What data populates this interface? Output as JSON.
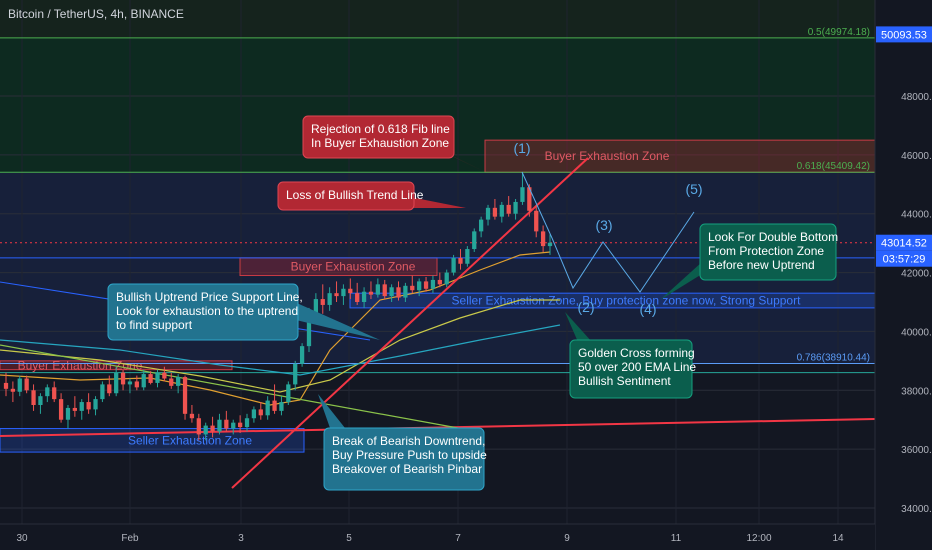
{
  "header": {
    "title": "Bitcoin / TetherUS, 4h, BINANCE"
  },
  "colors": {
    "background": "#131722",
    "up_candle": "#26a69a",
    "down_candle": "#ef5350",
    "trend_line": "#f23645",
    "fib_zone_top": "#0d2a20",
    "fib_zone_mid": "#17203a",
    "blue_zone": "#1e3a6b",
    "red_zone": "#4a1a1f",
    "price_badge": "#2962ff",
    "callout_red": "#b22833",
    "callout_blue": "#22738f",
    "callout_green": "#0b5e4d"
  },
  "chart_data": {
    "type": "candlestick",
    "title": "Bitcoin / TetherUS, 4h, BINANCE",
    "y_axis": {
      "ticks": [
        34000,
        36000,
        38000,
        40000,
        42000,
        44000,
        46000,
        48000
      ],
      "tick_labels": [
        "34000.00",
        "36000.00",
        "38000.00",
        "40000.00",
        "42000.00",
        "44000.00",
        "46000.00",
        "48000.00"
      ],
      "range": [
        33500,
        51200
      ]
    },
    "x_axis": {
      "tick_labels": [
        "30",
        "Feb",
        "3",
        "5",
        "7",
        "9",
        "11",
        "12:00",
        "14"
      ]
    },
    "grid": true,
    "price_labels": [
      {
        "value": "50093.53",
        "style": "blue"
      },
      {
        "value": "43014.52",
        "style": "blue"
      },
      {
        "value": "03:57:29",
        "style": "blue"
      }
    ],
    "fib_levels": [
      {
        "label": "0.5(49974.18)",
        "value": 49974.18
      },
      {
        "label": "0.618(45409.42)",
        "value": 45409.42
      },
      {
        "label": "0.786(38910.44)",
        "value": 38910.44
      }
    ],
    "candles": [
      {
        "o": 38250,
        "h": 38600,
        "l": 37800,
        "c": 38050
      },
      {
        "o": 38050,
        "h": 38300,
        "l": 37600,
        "c": 37950
      },
      {
        "o": 37950,
        "h": 38500,
        "l": 37800,
        "c": 38400
      },
      {
        "o": 38400,
        "h": 38500,
        "l": 37900,
        "c": 38000
      },
      {
        "o": 38000,
        "h": 38200,
        "l": 37300,
        "c": 37500
      },
      {
        "o": 37500,
        "h": 37900,
        "l": 37200,
        "c": 37800
      },
      {
        "o": 37800,
        "h": 38200,
        "l": 37600,
        "c": 38100
      },
      {
        "o": 38100,
        "h": 38300,
        "l": 37600,
        "c": 37700
      },
      {
        "o": 37700,
        "h": 37900,
        "l": 36900,
        "c": 37000
      },
      {
        "o": 37000,
        "h": 37500,
        "l": 36700,
        "c": 37400
      },
      {
        "o": 37400,
        "h": 37800,
        "l": 37100,
        "c": 37300
      },
      {
        "o": 37300,
        "h": 37700,
        "l": 37000,
        "c": 37600
      },
      {
        "o": 37600,
        "h": 37900,
        "l": 37200,
        "c": 37350
      },
      {
        "o": 37350,
        "h": 37800,
        "l": 37150,
        "c": 37700
      },
      {
        "o": 37700,
        "h": 38300,
        "l": 37600,
        "c": 38200
      },
      {
        "o": 38200,
        "h": 38500,
        "l": 37800,
        "c": 37900
      },
      {
        "o": 37900,
        "h": 38800,
        "l": 37800,
        "c": 38600
      },
      {
        "o": 38600,
        "h": 38700,
        "l": 38000,
        "c": 38200
      },
      {
        "o": 38200,
        "h": 38400,
        "l": 37900,
        "c": 38300
      },
      {
        "o": 38300,
        "h": 38500,
        "l": 38000,
        "c": 38100
      },
      {
        "o": 38100,
        "h": 38700,
        "l": 38000,
        "c": 38550
      },
      {
        "o": 38550,
        "h": 38650,
        "l": 38200,
        "c": 38250
      },
      {
        "o": 38250,
        "h": 38700,
        "l": 38100,
        "c": 38600
      },
      {
        "o": 38600,
        "h": 38800,
        "l": 38300,
        "c": 38400
      },
      {
        "o": 38400,
        "h": 38600,
        "l": 38050,
        "c": 38150
      },
      {
        "o": 38150,
        "h": 38550,
        "l": 37900,
        "c": 38450
      },
      {
        "o": 38450,
        "h": 38500,
        "l": 37000,
        "c": 37200
      },
      {
        "o": 37200,
        "h": 37500,
        "l": 36900,
        "c": 37050
      },
      {
        "o": 37050,
        "h": 37200,
        "l": 36300,
        "c": 36500
      },
      {
        "o": 36500,
        "h": 36900,
        "l": 36300,
        "c": 36800
      },
      {
        "o": 36800,
        "h": 37100,
        "l": 36400,
        "c": 36600
      },
      {
        "o": 36600,
        "h": 37200,
        "l": 36500,
        "c": 37000
      },
      {
        "o": 37000,
        "h": 37300,
        "l": 36600,
        "c": 36700
      },
      {
        "o": 36700,
        "h": 37000,
        "l": 36500,
        "c": 36900
      },
      {
        "o": 36900,
        "h": 37150,
        "l": 36550,
        "c": 36750
      },
      {
        "o": 36750,
        "h": 37200,
        "l": 36600,
        "c": 37050
      },
      {
        "o": 37050,
        "h": 37450,
        "l": 36900,
        "c": 37350
      },
      {
        "o": 37350,
        "h": 37600,
        "l": 37000,
        "c": 37150
      },
      {
        "o": 37150,
        "h": 37800,
        "l": 37000,
        "c": 37650
      },
      {
        "o": 37650,
        "h": 38200,
        "l": 37200,
        "c": 37300
      },
      {
        "o": 37300,
        "h": 37800,
        "l": 37150,
        "c": 37600
      },
      {
        "o": 37600,
        "h": 38300,
        "l": 37500,
        "c": 38200
      },
      {
        "o": 38200,
        "h": 39000,
        "l": 38000,
        "c": 38900
      },
      {
        "o": 38900,
        "h": 39600,
        "l": 38800,
        "c": 39500
      },
      {
        "o": 39500,
        "h": 40800,
        "l": 39300,
        "c": 40600
      },
      {
        "o": 40600,
        "h": 41300,
        "l": 40300,
        "c": 41100
      },
      {
        "o": 41100,
        "h": 41600,
        "l": 40600,
        "c": 40900
      },
      {
        "o": 40900,
        "h": 41500,
        "l": 40700,
        "c": 41300
      },
      {
        "o": 41300,
        "h": 41700,
        "l": 41000,
        "c": 41200
      },
      {
        "o": 41200,
        "h": 41600,
        "l": 40900,
        "c": 41450
      },
      {
        "o": 41450,
        "h": 41800,
        "l": 41100,
        "c": 41300
      },
      {
        "o": 41300,
        "h": 41650,
        "l": 40900,
        "c": 41000
      },
      {
        "o": 41000,
        "h": 41500,
        "l": 40800,
        "c": 41350
      },
      {
        "o": 41350,
        "h": 41700,
        "l": 41100,
        "c": 41250
      },
      {
        "o": 41250,
        "h": 41800,
        "l": 41150,
        "c": 41600
      },
      {
        "o": 41600,
        "h": 41750,
        "l": 41100,
        "c": 41200
      },
      {
        "o": 41200,
        "h": 41600,
        "l": 41000,
        "c": 41500
      },
      {
        "o": 41500,
        "h": 41700,
        "l": 41050,
        "c": 41150
      },
      {
        "o": 41150,
        "h": 41650,
        "l": 41000,
        "c": 41550
      },
      {
        "o": 41550,
        "h": 41900,
        "l": 41300,
        "c": 41400
      },
      {
        "o": 41400,
        "h": 41800,
        "l": 41200,
        "c": 41700
      },
      {
        "o": 41700,
        "h": 41850,
        "l": 41350,
        "c": 41450
      },
      {
        "o": 41450,
        "h": 41900,
        "l": 41300,
        "c": 41750
      },
      {
        "o": 41750,
        "h": 42000,
        "l": 41500,
        "c": 41600
      },
      {
        "o": 41600,
        "h": 42100,
        "l": 41500,
        "c": 42000
      },
      {
        "o": 42000,
        "h": 42600,
        "l": 41900,
        "c": 42500
      },
      {
        "o": 42500,
        "h": 42800,
        "l": 42100,
        "c": 42300
      },
      {
        "o": 42300,
        "h": 42900,
        "l": 42200,
        "c": 42800
      },
      {
        "o": 42800,
        "h": 43500,
        "l": 42700,
        "c": 43400
      },
      {
        "o": 43400,
        "h": 43900,
        "l": 43200,
        "c": 43800
      },
      {
        "o": 43800,
        "h": 44300,
        "l": 43600,
        "c": 44200
      },
      {
        "o": 44200,
        "h": 44500,
        "l": 43800,
        "c": 43900
      },
      {
        "o": 43900,
        "h": 44400,
        "l": 43700,
        "c": 44300
      },
      {
        "o": 44300,
        "h": 44600,
        "l": 43900,
        "c": 44000
      },
      {
        "o": 44000,
        "h": 44500,
        "l": 43800,
        "c": 44400
      },
      {
        "o": 44400,
        "h": 45400,
        "l": 44300,
        "c": 44900
      },
      {
        "o": 44900,
        "h": 45000,
        "l": 43900,
        "c": 44100
      },
      {
        "o": 44100,
        "h": 44300,
        "l": 43200,
        "c": 43400
      },
      {
        "o": 43400,
        "h": 43600,
        "l": 42700,
        "c": 42900
      },
      {
        "o": 42900,
        "h": 43300,
        "l": 42600,
        "c": 43014.52
      }
    ],
    "zones": [
      {
        "label": "Buyer Exhaustion Zone",
        "low": 45409,
        "high": 46500,
        "kind": "red"
      },
      {
        "label": "Buyer Exhaustion Zone",
        "low": 41900,
        "high": 42500,
        "kind": "red"
      },
      {
        "label": "Buyer Exhaustion Zone",
        "low": 38700,
        "high": 39000,
        "kind": "red"
      },
      {
        "label": "Seller Exhaustion Zone, Buy protection zone now, Strong Support",
        "low": 40800,
        "high": 41300,
        "kind": "blue"
      },
      {
        "label": "Seller Exhaustion Zone",
        "low": 35900,
        "high": 36700,
        "kind": "blue"
      }
    ],
    "wave_labels": [
      "(1)",
      "(2)",
      "(3)",
      "(4)",
      "(5)"
    ],
    "annotations": [
      "Rejection of 0.618 Fib line\nIn Buyer Exhaustion Zone",
      "Loss of Bullish Trend Line",
      "Bullish Uptrend Price Support Line,\nLook for exhaustion to the uptrend\nto find support",
      "Break of Bearish Downtrend,\nBuy Pressure Push to upside\nBreakover of Bearish Pinbar",
      "Golden Cross forming\n50 over 200 EMA Line\nBullish Sentiment",
      "Look For Double Bottom\nFrom Protection Zone\nBefore new Uptrend"
    ]
  }
}
